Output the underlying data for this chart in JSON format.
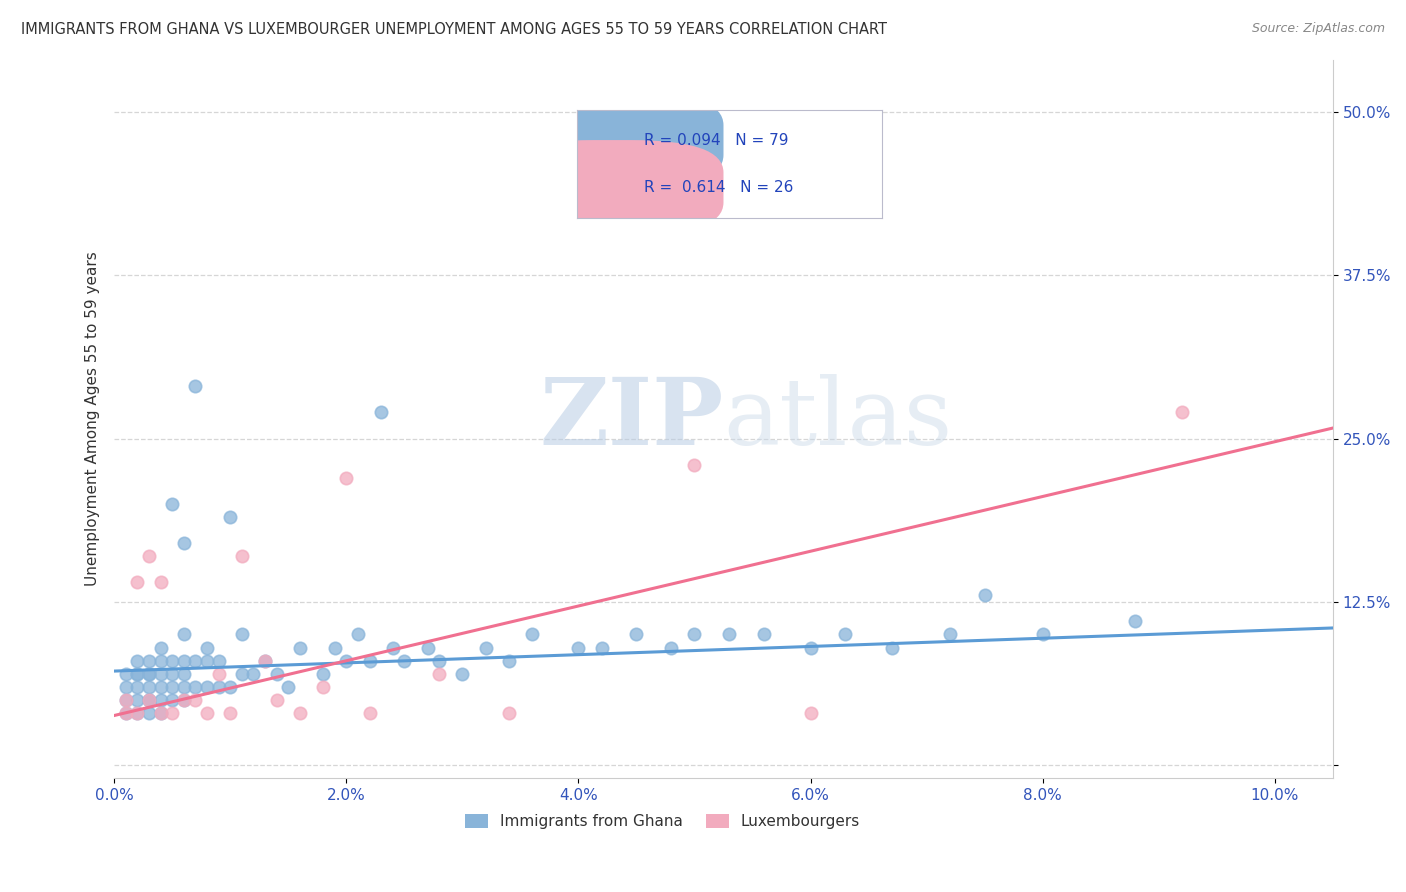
{
  "title": "IMMIGRANTS FROM GHANA VS LUXEMBOURGER UNEMPLOYMENT AMONG AGES 55 TO 59 YEARS CORRELATION CHART",
  "source": "Source: ZipAtlas.com",
  "ylabel": "Unemployment Among Ages 55 to 59 years",
  "xlim": [
    0.0,
    0.105
  ],
  "ylim": [
    -0.01,
    0.54
  ],
  "xticks": [
    0.0,
    0.02,
    0.04,
    0.06,
    0.08,
    0.1
  ],
  "xtick_labels": [
    "0.0%",
    "2.0%",
    "4.0%",
    "6.0%",
    "8.0%",
    "10.0%"
  ],
  "yticks": [
    0.0,
    0.125,
    0.25,
    0.375,
    0.5
  ],
  "ytick_labels": [
    "",
    "12.5%",
    "25.0%",
    "37.5%",
    "50.0%"
  ],
  "blue_color": "#89B4D9",
  "pink_color": "#F2ABBE",
  "blue_line_color": "#5B9BD5",
  "pink_line_color": "#F07090",
  "R_blue": 0.094,
  "N_blue": 79,
  "R_pink": 0.614,
  "N_pink": 26,
  "legend_label_blue": "Immigrants from Ghana",
  "legend_label_pink": "Luxembourgers",
  "watermark_zip": "ZIP",
  "watermark_atlas": "atlas",
  "background_color": "#ffffff",
  "grid_color": "#cccccc",
  "blue_scatter_x": [
    0.001,
    0.001,
    0.001,
    0.001,
    0.002,
    0.002,
    0.002,
    0.002,
    0.002,
    0.002,
    0.003,
    0.003,
    0.003,
    0.003,
    0.003,
    0.003,
    0.003,
    0.004,
    0.004,
    0.004,
    0.004,
    0.004,
    0.004,
    0.005,
    0.005,
    0.005,
    0.005,
    0.005,
    0.006,
    0.006,
    0.006,
    0.006,
    0.006,
    0.006,
    0.007,
    0.007,
    0.007,
    0.008,
    0.008,
    0.008,
    0.009,
    0.009,
    0.01,
    0.01,
    0.011,
    0.011,
    0.012,
    0.013,
    0.014,
    0.015,
    0.016,
    0.018,
    0.019,
    0.02,
    0.021,
    0.022,
    0.023,
    0.024,
    0.025,
    0.027,
    0.028,
    0.03,
    0.032,
    0.034,
    0.036,
    0.04,
    0.042,
    0.045,
    0.048,
    0.05,
    0.053,
    0.056,
    0.06,
    0.063,
    0.067,
    0.072,
    0.075,
    0.08,
    0.088
  ],
  "blue_scatter_y": [
    0.04,
    0.05,
    0.06,
    0.07,
    0.04,
    0.05,
    0.06,
    0.07,
    0.07,
    0.08,
    0.04,
    0.05,
    0.05,
    0.06,
    0.07,
    0.07,
    0.08,
    0.04,
    0.05,
    0.06,
    0.07,
    0.08,
    0.09,
    0.05,
    0.06,
    0.07,
    0.08,
    0.2,
    0.05,
    0.06,
    0.07,
    0.08,
    0.1,
    0.17,
    0.06,
    0.08,
    0.29,
    0.06,
    0.08,
    0.09,
    0.06,
    0.08,
    0.06,
    0.19,
    0.07,
    0.1,
    0.07,
    0.08,
    0.07,
    0.06,
    0.09,
    0.07,
    0.09,
    0.08,
    0.1,
    0.08,
    0.27,
    0.09,
    0.08,
    0.09,
    0.08,
    0.07,
    0.09,
    0.08,
    0.1,
    0.09,
    0.09,
    0.1,
    0.09,
    0.1,
    0.1,
    0.1,
    0.09,
    0.1,
    0.09,
    0.1,
    0.13,
    0.1,
    0.11
  ],
  "pink_scatter_x": [
    0.001,
    0.001,
    0.002,
    0.002,
    0.003,
    0.003,
    0.004,
    0.004,
    0.005,
    0.006,
    0.007,
    0.008,
    0.009,
    0.01,
    0.011,
    0.013,
    0.014,
    0.016,
    0.018,
    0.02,
    0.022,
    0.028,
    0.034,
    0.05,
    0.06,
    0.092
  ],
  "pink_scatter_y": [
    0.04,
    0.05,
    0.04,
    0.14,
    0.05,
    0.16,
    0.04,
    0.14,
    0.04,
    0.05,
    0.05,
    0.04,
    0.07,
    0.04,
    0.16,
    0.08,
    0.05,
    0.04,
    0.06,
    0.22,
    0.04,
    0.07,
    0.04,
    0.23,
    0.04,
    0.27
  ],
  "blue_trend_x": [
    0.0,
    0.105
  ],
  "blue_trend_y": [
    0.072,
    0.105
  ],
  "pink_trend_x": [
    0.0,
    0.105
  ],
  "pink_trend_y": [
    0.038,
    0.258
  ]
}
